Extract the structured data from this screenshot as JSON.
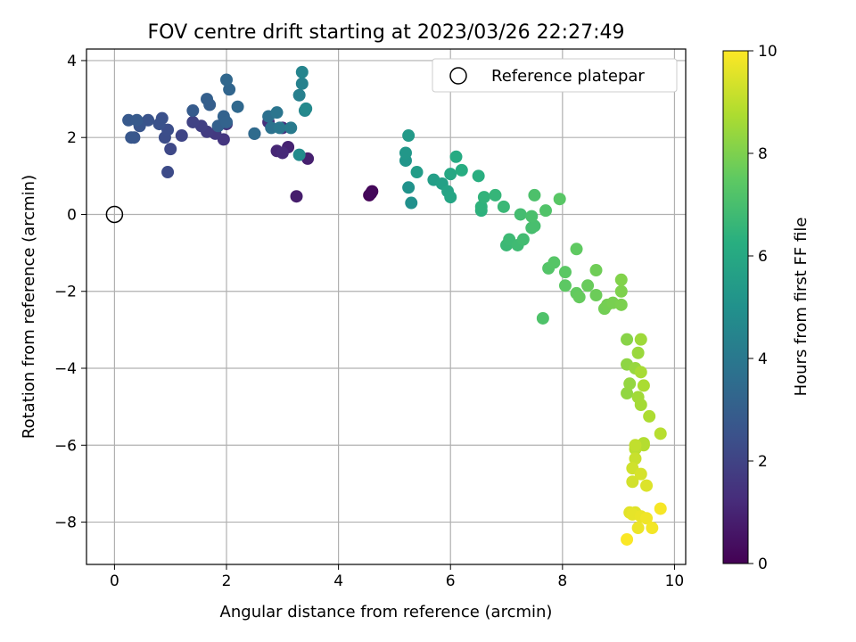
{
  "chart_data": {
    "type": "scatter",
    "title": "FOV centre drift starting at 2023/03/26 22:27:49",
    "xlabel": "Angular distance from reference (arcmin)",
    "ylabel": "Rotation from reference (arcmin)",
    "xlim": [
      -0.5,
      10.2
    ],
    "ylim": [
      -9.1,
      4.3
    ],
    "x_ticks": [
      0,
      2,
      4,
      6,
      8,
      10
    ],
    "y_ticks": [
      -8,
      -6,
      -4,
      -2,
      0,
      2,
      4
    ],
    "grid": true,
    "legend": {
      "position": "top-right",
      "entries": [
        "Reference platepar"
      ]
    },
    "reference_point": {
      "x": 0,
      "y": 0,
      "label": "Reference platepar"
    },
    "colorbar": {
      "label": "Hours from first FF file",
      "range": [
        0,
        10
      ],
      "ticks": [
        0,
        2,
        4,
        6,
        8,
        10
      ],
      "colormap": "viridis"
    },
    "points": [
      [
        4.55,
        0.5,
        0.1
      ],
      [
        4.6,
        0.6,
        0.15
      ],
      [
        4.58,
        0.55,
        0.2
      ],
      [
        3.25,
        0.47,
        0.8
      ],
      [
        3.45,
        1.45,
        0.9
      ],
      [
        3.1,
        1.75,
        1.0
      ],
      [
        2.9,
        1.65,
        1.1
      ],
      [
        3.0,
        1.6,
        1.2
      ],
      [
        3.0,
        2.25,
        1.3
      ],
      [
        2.75,
        2.4,
        1.4
      ],
      [
        2.5,
        2.1,
        1.45
      ],
      [
        2.0,
        2.35,
        1.5
      ],
      [
        1.95,
        1.95,
        1.6
      ],
      [
        1.8,
        2.1,
        1.7
      ],
      [
        1.65,
        2.15,
        1.8
      ],
      [
        1.55,
        2.3,
        1.9
      ],
      [
        1.4,
        2.4,
        2.0
      ],
      [
        1.2,
        2.05,
        2.1
      ],
      [
        1.0,
        1.7,
        2.2
      ],
      [
        0.95,
        1.1,
        2.3
      ],
      [
        0.9,
        2.0,
        2.35
      ],
      [
        0.95,
        2.2,
        2.4
      ],
      [
        0.85,
        2.5,
        2.5
      ],
      [
        0.8,
        2.35,
        2.55
      ],
      [
        0.6,
        2.45,
        2.6
      ],
      [
        0.45,
        2.3,
        2.65
      ],
      [
        0.35,
        2.0,
        2.7
      ],
      [
        0.3,
        2.0,
        2.75
      ],
      [
        0.25,
        2.45,
        2.8
      ],
      [
        0.4,
        2.45,
        2.85
      ],
      [
        1.4,
        2.7,
        2.9
      ],
      [
        1.7,
        2.85,
        3.0
      ],
      [
        1.65,
        3.0,
        3.05
      ],
      [
        1.85,
        2.3,
        3.1
      ],
      [
        1.95,
        2.55,
        3.15
      ],
      [
        2.0,
        2.4,
        3.2
      ],
      [
        2.05,
        3.25,
        3.3
      ],
      [
        2.0,
        3.5,
        3.35
      ],
      [
        2.2,
        2.8,
        3.4
      ],
      [
        2.5,
        2.1,
        3.5
      ],
      [
        2.75,
        2.55,
        3.7
      ],
      [
        2.8,
        2.25,
        3.8
      ],
      [
        2.9,
        2.65,
        3.9
      ],
      [
        2.95,
        2.25,
        4.0
      ],
      [
        3.15,
        2.25,
        4.1
      ],
      [
        3.3,
        3.1,
        4.3
      ],
      [
        3.35,
        3.4,
        4.4
      ],
      [
        3.35,
        3.7,
        4.5
      ],
      [
        3.4,
        2.7,
        4.6
      ],
      [
        3.42,
        2.75,
        4.7
      ],
      [
        3.3,
        1.55,
        4.8
      ],
      [
        5.3,
        0.3,
        5.0
      ],
      [
        5.25,
        0.7,
        5.1
      ],
      [
        5.2,
        1.4,
        5.2
      ],
      [
        5.2,
        1.6,
        5.3
      ],
      [
        5.25,
        2.05,
        5.4
      ],
      [
        5.4,
        1.1,
        5.5
      ],
      [
        5.7,
        0.9,
        5.6
      ],
      [
        5.85,
        0.8,
        5.7
      ],
      [
        5.95,
        0.6,
        5.8
      ],
      [
        6.0,
        0.45,
        5.9
      ],
      [
        6.0,
        1.05,
        6.0
      ],
      [
        6.1,
        1.5,
        6.1
      ],
      [
        6.2,
        1.15,
        6.2
      ],
      [
        6.5,
        1.0,
        6.3
      ],
      [
        6.55,
        0.1,
        6.4
      ],
      [
        6.55,
        0.2,
        6.45
      ],
      [
        6.6,
        0.45,
        6.5
      ],
      [
        6.8,
        0.5,
        6.6
      ],
      [
        6.95,
        0.2,
        6.7
      ],
      [
        7.0,
        -0.8,
        6.75
      ],
      [
        7.05,
        -0.65,
        6.8
      ],
      [
        7.2,
        -0.8,
        6.85
      ],
      [
        7.3,
        -0.65,
        6.9
      ],
      [
        7.25,
        0.0,
        6.95
      ],
      [
        7.45,
        -0.35,
        7.0
      ],
      [
        7.5,
        -0.3,
        7.05
      ],
      [
        7.45,
        -0.05,
        7.1
      ],
      [
        7.5,
        0.5,
        7.15
      ],
      [
        7.65,
        -2.7,
        7.2
      ],
      [
        7.7,
        0.1,
        7.25
      ],
      [
        7.75,
        -1.4,
        7.3
      ],
      [
        7.85,
        -1.25,
        7.35
      ],
      [
        7.95,
        0.4,
        7.4
      ],
      [
        8.05,
        -1.5,
        7.45
      ],
      [
        8.05,
        -1.85,
        7.5
      ],
      [
        8.25,
        -0.9,
        7.55
      ],
      [
        8.25,
        -2.05,
        7.6
      ],
      [
        8.3,
        -2.15,
        7.65
      ],
      [
        8.45,
        -1.85,
        7.7
      ],
      [
        8.6,
        -2.1,
        7.75
      ],
      [
        8.6,
        -1.45,
        7.8
      ],
      [
        8.75,
        -2.45,
        7.85
      ],
      [
        8.8,
        -2.35,
        7.9
      ],
      [
        8.9,
        -2.3,
        7.95
      ],
      [
        9.05,
        -2.35,
        8.0
      ],
      [
        9.05,
        -2.0,
        8.05
      ],
      [
        9.05,
        -1.7,
        8.1
      ],
      [
        9.15,
        -3.25,
        8.2
      ],
      [
        9.15,
        -3.9,
        8.3
      ],
      [
        9.15,
        -4.65,
        8.35
      ],
      [
        9.2,
        -4.4,
        8.4
      ],
      [
        9.3,
        -4.0,
        8.45
      ],
      [
        9.35,
        -3.6,
        8.5
      ],
      [
        9.4,
        -3.25,
        8.55
      ],
      [
        9.35,
        -4.75,
        8.6
      ],
      [
        9.4,
        -4.95,
        8.65
      ],
      [
        9.4,
        -4.1,
        8.7
      ],
      [
        9.45,
        -4.45,
        8.75
      ],
      [
        9.55,
        -5.25,
        8.8
      ],
      [
        9.45,
        -5.95,
        8.85
      ],
      [
        9.45,
        -6.0,
        8.9
      ],
      [
        9.75,
        -5.7,
        8.95
      ],
      [
        9.3,
        -6.1,
        9.0
      ],
      [
        9.3,
        -6.0,
        9.1
      ],
      [
        9.3,
        -6.35,
        9.2
      ],
      [
        9.25,
        -6.6,
        9.3
      ],
      [
        9.25,
        -6.95,
        9.35
      ],
      [
        9.4,
        -6.75,
        9.4
      ],
      [
        9.5,
        -7.05,
        9.5
      ],
      [
        9.3,
        -7.75,
        9.55
      ],
      [
        9.2,
        -7.75,
        9.6
      ],
      [
        9.25,
        -7.8,
        9.65
      ],
      [
        9.4,
        -7.85,
        9.7
      ],
      [
        9.35,
        -8.15,
        9.75
      ],
      [
        9.5,
        -7.9,
        9.8
      ],
      [
        9.6,
        -8.15,
        9.85
      ],
      [
        9.75,
        -7.65,
        9.9
      ],
      [
        9.15,
        -8.45,
        9.95
      ]
    ]
  }
}
